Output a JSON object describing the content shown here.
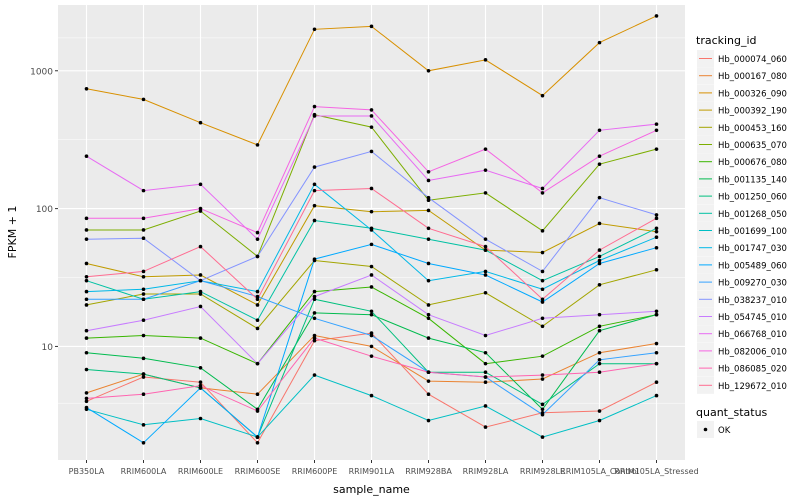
{
  "chart_data": {
    "type": "line",
    "xlabel": "sample_name",
    "ylabel": "FPKM + 1",
    "y_scale": "log10",
    "ylim": [
      1.5,
      3000
    ],
    "y_ticks": [
      10,
      100,
      1000
    ],
    "y_tick_labels": [
      "10",
      "100",
      "1000"
    ],
    "grid": true,
    "legend_position": "right",
    "background_color": "#ebebeb",
    "grid_color": "#ffffff",
    "legend_title": "tracking_id",
    "legend_title_quant": "quant_status",
    "quant_legend_items": [
      "OK"
    ],
    "categories": [
      "PB350LA",
      "RRIM600LA",
      "RRIM600LE",
      "RRIM600SE",
      "RRIM600PE",
      "RRIM901LA",
      "RRIM928BA",
      "RRIM928LA",
      "RRIM928LE",
      "RRIM105LA_Control",
      "RRIM105LA_Stressed"
    ],
    "series": [
      {
        "name": "Hb_000074_060",
        "color": "#F8766D",
        "values": [
          4.0,
          6.0,
          5.5,
          2.0,
          11.0,
          12.5,
          4.5,
          2.6,
          3.3,
          3.4,
          5.5
        ]
      },
      {
        "name": "Hb_000167_080",
        "color": "#EA8331",
        "values": [
          4.6,
          6.3,
          5.0,
          4.5,
          12.0,
          10.0,
          5.6,
          5.5,
          5.8,
          9.0,
          10.5
        ]
      },
      {
        "name": "Hb_000326_090",
        "color": "#D89000",
        "values": [
          740,
          620,
          420,
          290,
          2000,
          2100,
          1000,
          1200,
          660,
          1600,
          2500
        ]
      },
      {
        "name": "Hb_000392_190",
        "color": "#C09B00",
        "values": [
          40,
          32,
          33,
          20,
          105,
          95,
          97,
          50,
          48,
          78,
          68
        ]
      },
      {
        "name": "Hb_000453_160",
        "color": "#A3A500",
        "values": [
          20,
          24,
          24,
          13.5,
          42,
          38,
          20,
          24.5,
          14,
          28,
          36
        ]
      },
      {
        "name": "Hb_000635_070",
        "color": "#7CAE00",
        "values": [
          70,
          70,
          96,
          45,
          480,
          390,
          115,
          130,
          69,
          210,
          270
        ]
      },
      {
        "name": "Hb_000676_080",
        "color": "#39B600",
        "values": [
          11.5,
          12,
          11.5,
          7.5,
          25,
          27,
          16,
          7.5,
          8.5,
          14,
          17
        ]
      },
      {
        "name": "Hb_001135_140",
        "color": "#00BB4E",
        "values": [
          9.0,
          8.2,
          7.0,
          3.5,
          17.5,
          17,
          11.5,
          9.0,
          3.5,
          13,
          17
        ]
      },
      {
        "name": "Hb_001250_060",
        "color": "#00BF7D",
        "values": [
          6.8,
          6.3,
          5.0,
          2.2,
          22,
          18,
          6.5,
          6.5,
          3.8,
          7.5,
          7.5
        ]
      },
      {
        "name": "Hb_001268_050",
        "color": "#00C1A3",
        "values": [
          30,
          22,
          25,
          15.5,
          82,
          72,
          60,
          50,
          30,
          45,
          72
        ]
      },
      {
        "name": "Hb_001699_100",
        "color": "#00BFC4",
        "values": [
          3.5,
          2.7,
          3.0,
          2.2,
          6.2,
          4.4,
          2.9,
          3.7,
          2.2,
          2.9,
          4.4
        ]
      },
      {
        "name": "Hb_001747_030",
        "color": "#00B8E7",
        "values": [
          25,
          26,
          30,
          25,
          150,
          70,
          30,
          35,
          26,
          42,
          62
        ]
      },
      {
        "name": "Hb_005489_060",
        "color": "#00A9FF",
        "values": [
          3.6,
          2.0,
          5.0,
          2.2,
          43,
          55,
          40,
          33,
          21,
          40,
          52
        ]
      },
      {
        "name": "Hb_009270_030",
        "color": "#35A2FF",
        "values": [
          22,
          22,
          30,
          23,
          16,
          12,
          6.5,
          6.0,
          3.2,
          8.0,
          9.0
        ]
      },
      {
        "name": "Hb_038237_010",
        "color": "#8494FF",
        "values": [
          60,
          61,
          30,
          45,
          200,
          260,
          120,
          60,
          35,
          120,
          90
        ]
      },
      {
        "name": "Hb_054745_010",
        "color": "#C77CFF",
        "values": [
          13,
          15.5,
          19.5,
          7.5,
          23,
          33,
          17,
          12,
          16,
          17,
          18
        ]
      },
      {
        "name": "Hb_066768_010",
        "color": "#E76BF3",
        "values": [
          240,
          135,
          150,
          60,
          470,
          470,
          160,
          190,
          140,
          370,
          410
        ]
      },
      {
        "name": "Hb_082006_010",
        "color": "#F564E3",
        "values": [
          85,
          85,
          100,
          67,
          550,
          520,
          185,
          270,
          130,
          240,
          370
        ]
      },
      {
        "name": "Hb_086085_020",
        "color": "#FF64B0",
        "values": [
          4.2,
          4.5,
          5.2,
          3.4,
          11.5,
          8.5,
          6.5,
          6.0,
          6.2,
          6.5,
          7.5
        ]
      },
      {
        "name": "Hb_129672_010",
        "color": "#FF6C91",
        "values": [
          32,
          35,
          53,
          22,
          135,
          140,
          72,
          53,
          22,
          50,
          85
        ]
      }
    ]
  }
}
